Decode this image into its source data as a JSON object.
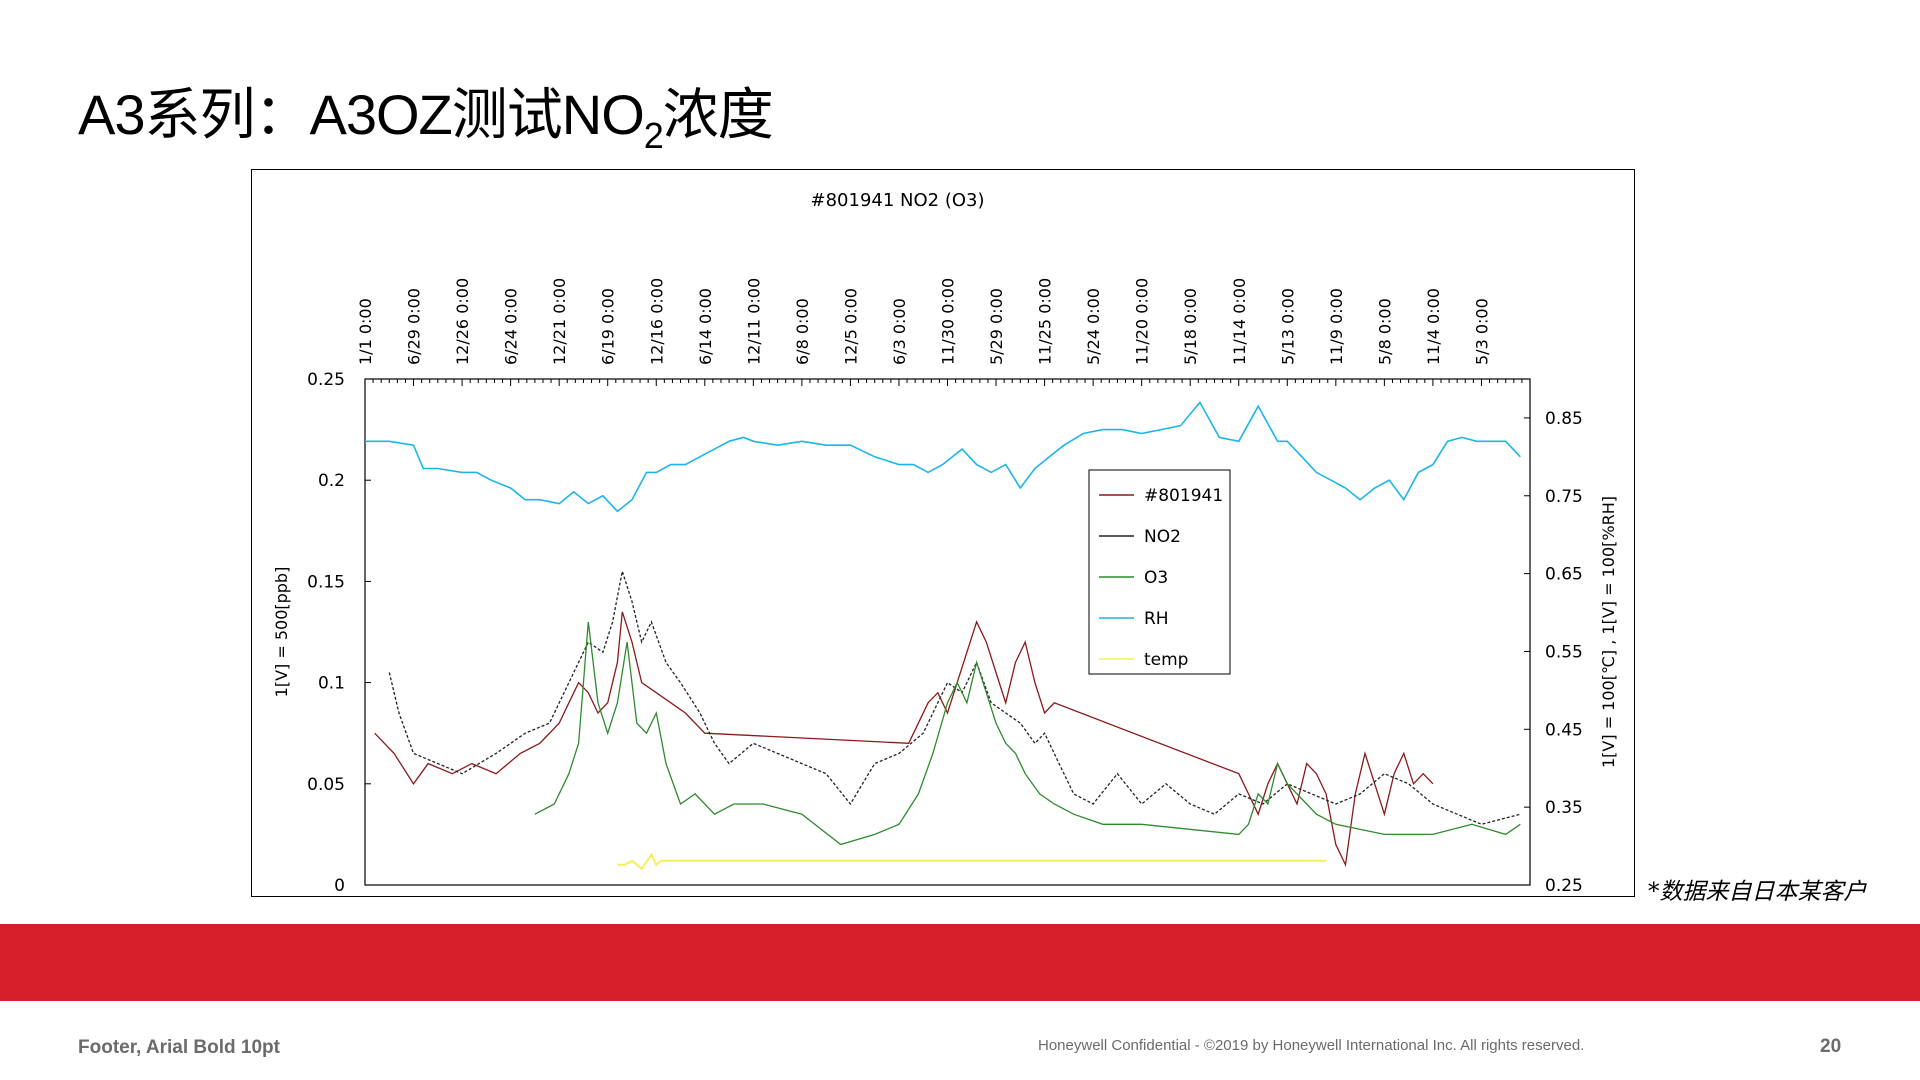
{
  "slide": {
    "title_main": "A3系列：A3OZ测试NO",
    "title_sub": "2",
    "title_tail": "浓度",
    "note": "*数据来自日本某客户",
    "footer_left": "Footer, Arial Bold 10pt",
    "footer_center": "Honeywell  Confidential  - ©2019  by  Honeywell  International  Inc.  All  rights  reserved.",
    "page_number": "20",
    "band_color": "#d71f2b"
  },
  "chart_data": {
    "type": "line",
    "title": "#801941 NO2 (O3)",
    "x_tick_labels": [
      "1/1 0:00",
      "6/29 0:00",
      "12/26 0:00",
      "6/24 0:00",
      "12/21 0:00",
      "6/19 0:00",
      "12/16 0:00",
      "6/14 0:00",
      "12/11 0:00",
      "6/8 0:00",
      "12/5 0:00",
      "6/3 0:00",
      "11/30 0:00",
      "5/29 0:00",
      "11/25 0:00",
      "5/24 0:00",
      "11/20 0:00",
      "5/18 0:00",
      "11/14 0:00",
      "5/13 0:00",
      "11/9 0:00",
      "5/8 0:00",
      "11/4 0:00",
      "5/3 0:00"
    ],
    "x_range": [
      0,
      24
    ],
    "ylabel_left": "1[V] = 500[ppb]",
    "ylim_left": [
      0,
      0.25
    ],
    "yticks_left": [
      "0",
      "0.05",
      "0.1",
      "0.15",
      "0.2",
      "0.25"
    ],
    "ylabel_right": "1[V] = 100[℃] , 1[V] = 100[%RH]",
    "ylim_right": [
      0.25,
      0.9
    ],
    "yticks_right": [
      "0.25",
      "0.35",
      "0.45",
      "0.55",
      "0.65",
      "0.75",
      "0.85"
    ],
    "legend_position": "center-right",
    "grid": false,
    "series": [
      {
        "name": "#801941",
        "color": "#8b1a1a",
        "axis": "left",
        "x": [
          0.2,
          0.6,
          1.0,
          1.3,
          1.8,
          2.2,
          2.7,
          3.2,
          3.6,
          4.0,
          4.2,
          4.4,
          4.6,
          4.8,
          5.0,
          5.2,
          5.3,
          5.5,
          5.7,
          6.0,
          6.3,
          6.6,
          7.0,
          11.2,
          11.6,
          11.8,
          12.0,
          12.2,
          12.4,
          12.6,
          12.8,
          13.0,
          13.2,
          13.4,
          13.6,
          13.8,
          14.0,
          14.2,
          18.0,
          18.2,
          18.4,
          18.6,
          18.8,
          19.0,
          19.2,
          19.4,
          19.6,
          19.8,
          20.0,
          20.2,
          20.4,
          20.6,
          20.8,
          21.0,
          21.2,
          21.4,
          21.6,
          21.8,
          22.0
        ],
        "y": [
          0.075,
          0.065,
          0.05,
          0.06,
          0.055,
          0.06,
          0.055,
          0.065,
          0.07,
          0.08,
          0.09,
          0.1,
          0.095,
          0.085,
          0.09,
          0.11,
          0.135,
          0.12,
          0.1,
          0.095,
          0.09,
          0.085,
          0.075,
          0.07,
          0.09,
          0.095,
          0.085,
          0.1,
          0.115,
          0.13,
          0.12,
          0.105,
          0.09,
          0.11,
          0.12,
          0.1,
          0.085,
          0.09,
          0.055,
          0.045,
          0.035,
          0.05,
          0.06,
          0.05,
          0.04,
          0.06,
          0.055,
          0.045,
          0.02,
          0.01,
          0.045,
          0.065,
          0.05,
          0.035,
          0.055,
          0.065,
          0.05,
          0.055,
          0.05
        ]
      },
      {
        "name": "NO2",
        "color": "#222222",
        "axis": "left",
        "x": [
          0.5,
          0.7,
          1.0,
          2.0,
          2.7,
          3.3,
          3.8,
          4.2,
          4.6,
          4.9,
          5.1,
          5.3,
          5.5,
          5.7,
          5.9,
          6.2,
          6.5,
          6.9,
          7.2,
          7.5,
          8.0,
          8.5,
          9.0,
          9.5,
          10.0,
          10.5,
          11.0,
          11.5,
          11.8,
          12.0,
          12.3,
          12.6,
          12.9,
          13.2,
          13.5,
          13.8,
          14.0,
          14.3,
          14.6,
          15.0,
          15.5,
          16.0,
          16.5,
          17.0,
          17.5,
          18.0,
          18.5,
          19.0,
          19.5,
          20.0,
          20.5,
          21.0,
          21.5,
          22.0,
          22.5,
          23.0,
          23.8
        ],
        "y": [
          0.105,
          0.085,
          0.065,
          0.055,
          0.065,
          0.075,
          0.08,
          0.1,
          0.12,
          0.115,
          0.13,
          0.155,
          0.14,
          0.12,
          0.13,
          0.11,
          0.1,
          0.085,
          0.07,
          0.06,
          0.07,
          0.065,
          0.06,
          0.055,
          0.04,
          0.06,
          0.065,
          0.075,
          0.09,
          0.1,
          0.095,
          0.11,
          0.09,
          0.085,
          0.08,
          0.07,
          0.075,
          0.06,
          0.045,
          0.04,
          0.055,
          0.04,
          0.05,
          0.04,
          0.035,
          0.045,
          0.04,
          0.05,
          0.045,
          0.04,
          0.045,
          0.055,
          0.05,
          0.04,
          0.035,
          0.03,
          0.035
        ]
      },
      {
        "name": "O3",
        "color": "#2e8b2e",
        "axis": "left",
        "x": [
          3.5,
          3.9,
          4.2,
          4.4,
          4.6,
          4.8,
          5.0,
          5.2,
          5.4,
          5.6,
          5.8,
          6.0,
          6.2,
          6.5,
          6.8,
          7.2,
          7.6,
          8.2,
          9.0,
          9.8,
          10.5,
          11.0,
          11.4,
          11.7,
          12.0,
          12.2,
          12.4,
          12.6,
          12.8,
          13.0,
          13.2,
          13.4,
          13.6,
          13.9,
          14.2,
          14.6,
          15.2,
          16.0,
          18.0,
          18.2,
          18.4,
          18.6,
          18.8,
          19.0,
          19.2,
          19.4,
          19.6,
          20.0,
          21.0,
          22.0,
          22.8,
          23.5,
          23.8
        ],
        "y": [
          0.035,
          0.04,
          0.055,
          0.07,
          0.13,
          0.09,
          0.075,
          0.09,
          0.12,
          0.08,
          0.075,
          0.085,
          0.06,
          0.04,
          0.045,
          0.035,
          0.04,
          0.04,
          0.035,
          0.02,
          0.025,
          0.03,
          0.045,
          0.065,
          0.09,
          0.1,
          0.09,
          0.11,
          0.095,
          0.08,
          0.07,
          0.065,
          0.055,
          0.045,
          0.04,
          0.035,
          0.03,
          0.03,
          0.025,
          0.03,
          0.045,
          0.04,
          0.06,
          0.05,
          0.045,
          0.04,
          0.035,
          0.03,
          0.025,
          0.025,
          0.03,
          0.025,
          0.03
        ]
      },
      {
        "name": "RH",
        "color": "#1ab6e8",
        "axis": "right",
        "x": [
          0.0,
          0.5,
          1.0,
          1.2,
          1.5,
          2.0,
          2.3,
          2.6,
          3.0,
          3.3,
          3.6,
          4.0,
          4.3,
          4.6,
          4.9,
          5.2,
          5.5,
          5.8,
          6.0,
          6.3,
          6.6,
          6.9,
          7.2,
          7.5,
          7.8,
          8.0,
          8.5,
          9.0,
          9.5,
          10.0,
          10.5,
          11.0,
          11.3,
          11.6,
          11.9,
          12.1,
          12.3,
          12.6,
          12.9,
          13.2,
          13.5,
          13.8,
          14.1,
          14.4,
          14.8,
          15.2,
          15.6,
          16.0,
          16.4,
          16.8,
          17.2,
          17.6,
          18.0,
          18.4,
          18.8,
          19.0,
          19.3,
          19.6,
          19.9,
          20.2,
          20.5,
          20.8,
          21.1,
          21.4,
          21.7,
          22.0,
          22.3,
          22.6,
          22.9,
          23.2,
          23.5,
          23.8
        ],
        "y": [
          0.82,
          0.82,
          0.815,
          0.785,
          0.785,
          0.78,
          0.78,
          0.77,
          0.76,
          0.745,
          0.745,
          0.74,
          0.755,
          0.74,
          0.75,
          0.73,
          0.745,
          0.78,
          0.78,
          0.79,
          0.79,
          0.8,
          0.81,
          0.82,
          0.825,
          0.82,
          0.815,
          0.82,
          0.815,
          0.815,
          0.8,
          0.79,
          0.79,
          0.78,
          0.79,
          0.8,
          0.81,
          0.79,
          0.78,
          0.79,
          0.76,
          0.785,
          0.8,
          0.815,
          0.83,
          0.835,
          0.835,
          0.83,
          0.835,
          0.84,
          0.87,
          0.825,
          0.82,
          0.865,
          0.82,
          0.82,
          0.8,
          0.78,
          0.77,
          0.76,
          0.745,
          0.76,
          0.77,
          0.745,
          0.78,
          0.79,
          0.82,
          0.825,
          0.82,
          0.82,
          0.82,
          0.8
        ]
      },
      {
        "name": "temp",
        "color": "#f5ef5a",
        "axis": "left",
        "x": [
          5.2,
          5.35,
          5.5,
          5.7,
          5.9,
          6.0,
          6.1,
          19.8
        ],
        "y": [
          0.01,
          0.01,
          0.012,
          0.008,
          0.015,
          0.01,
          0.012,
          0.012
        ]
      }
    ]
  }
}
